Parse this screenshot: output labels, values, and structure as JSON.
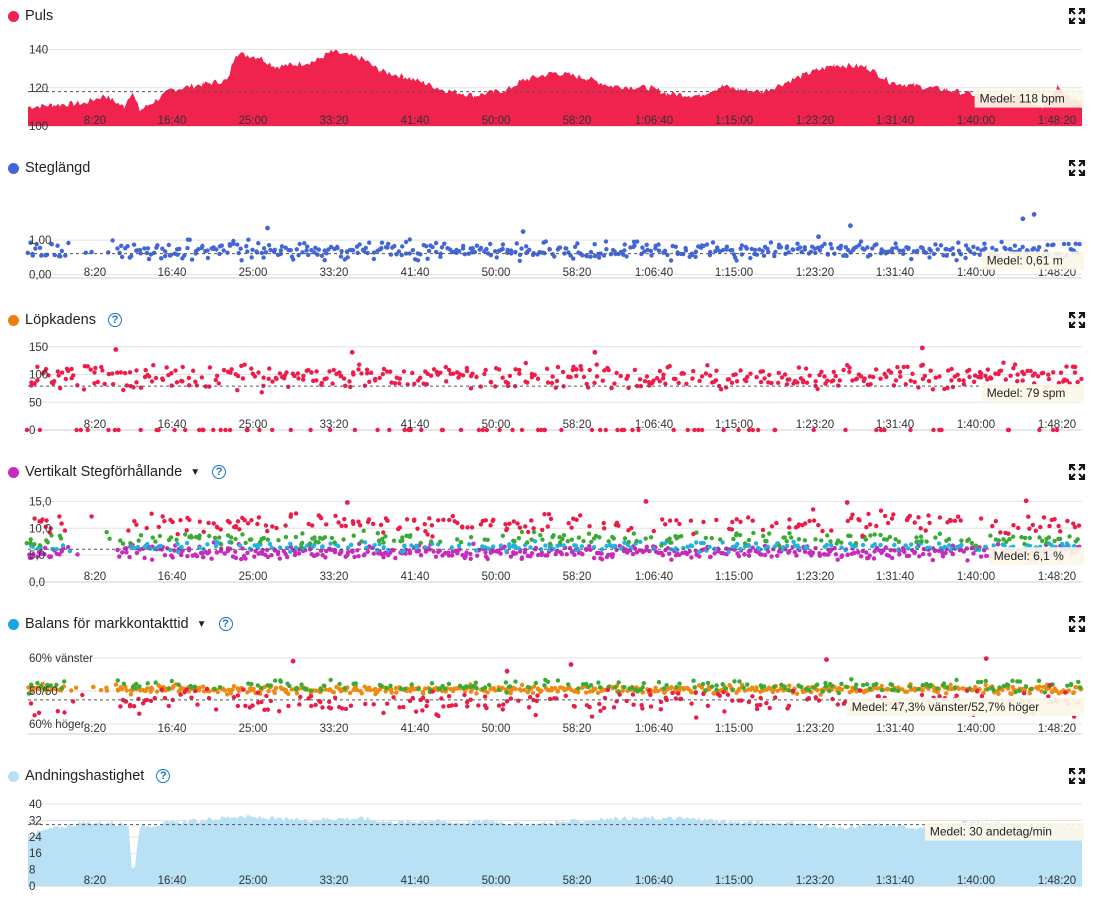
{
  "x_tick_labels": [
    "8:20",
    "16:40",
    "25:00",
    "33:20",
    "41:40",
    "50:00",
    "58:20",
    "1:06:40",
    "1:15:00",
    "1:23:20",
    "1:31:40",
    "1:40:00",
    "1:48:20"
  ],
  "colors": {
    "heart": "#f0224e",
    "stride": "#4266d8",
    "cadence_dot": "#ee7d0e",
    "cadence": "#ef1c4a",
    "vertical": "#c42bbf",
    "balance_dot": "#1aa6e6",
    "breathing": "#b9e1f6",
    "green": "#3aaa35",
    "orange": "#ee8a10",
    "cyan": "#20b2e0",
    "red": "#ea1c48"
  },
  "panels": [
    {
      "id": "heart",
      "title": "Puls",
      "has_help": false,
      "has_caret": false,
      "avg": "Medel: 118 bpm",
      "chart_data": {
        "type": "area",
        "y_tick_labels": [
          "140",
          "120",
          "100"
        ],
        "ylim": [
          100,
          145
        ],
        "avg_value": 118,
        "x_unit": "seconds",
        "xlim": [
          0,
          6600
        ],
        "points": [
          [
            0,
            110
          ],
          [
            150,
            111
          ],
          [
            350,
            112
          ],
          [
            480,
            116
          ],
          [
            600,
            110
          ],
          [
            650,
            118
          ],
          [
            700,
            108
          ],
          [
            900,
            119
          ],
          [
            1100,
            122
          ],
          [
            1250,
            124
          ],
          [
            1300,
            138
          ],
          [
            1450,
            136
          ],
          [
            1550,
            131
          ],
          [
            1650,
            132
          ],
          [
            1800,
            134
          ],
          [
            1900,
            139
          ],
          [
            2100,
            135
          ],
          [
            2200,
            129
          ],
          [
            2350,
            126
          ],
          [
            2500,
            122
          ],
          [
            2600,
            119
          ],
          [
            2800,
            116
          ],
          [
            3000,
            119
          ],
          [
            3100,
            124
          ],
          [
            3300,
            128
          ],
          [
            3500,
            125
          ],
          [
            3650,
            121
          ],
          [
            3900,
            120
          ],
          [
            4000,
            117
          ],
          [
            4200,
            116
          ],
          [
            4350,
            121
          ],
          [
            4450,
            119
          ],
          [
            4600,
            118
          ],
          [
            4900,
            128
          ],
          [
            5050,
            132
          ],
          [
            5250,
            131
          ],
          [
            5400,
            123
          ],
          [
            5550,
            121
          ],
          [
            5750,
            119
          ],
          [
            5950,
            116
          ],
          [
            6050,
            114
          ],
          [
            6200,
            117
          ],
          [
            6350,
            110
          ],
          [
            6450,
            121
          ],
          [
            6550,
            113
          ],
          [
            6600,
            113
          ]
        ]
      }
    },
    {
      "id": "stride",
      "title": "Steglängd",
      "has_help": false,
      "has_caret": false,
      "avg": "Medel: 0,61 m",
      "chart_data": {
        "type": "scatter",
        "y_tick_labels": [
          "1,00",
          "0,00"
        ],
        "ylim": [
          -0.1,
          2.4
        ],
        "avg_value": 0.61,
        "x_unit": "seconds",
        "xlim": [
          0,
          6600
        ],
        "series": [
          {
            "name": "Steglängd",
            "color": "#4266d8",
            "mean": 0.7,
            "spread": 0.25,
            "extremes": [
              [
                1500,
                1.35
              ],
              [
                3100,
                1.25
              ],
              [
                5150,
                1.42
              ],
              [
                6300,
                1.75
              ],
              [
                6230,
                1.62
              ],
              [
                4950,
                1.1
              ]
            ]
          }
        ]
      }
    },
    {
      "id": "cadence",
      "title": "Löpkadens",
      "has_help": true,
      "has_caret": false,
      "avg": "Medel: 79 spm",
      "chart_data": {
        "type": "scatter",
        "y_tick_labels": [
          "150",
          "100",
          "50",
          "0"
        ],
        "ylim": [
          0,
          155
        ],
        "avg_value": 79,
        "x_unit": "seconds",
        "xlim": [
          0,
          6600
        ],
        "series": [
          {
            "name": "Löpkadens",
            "color": "#ef1c4a",
            "mean": 95,
            "spread": 22,
            "extremes": [
              [
                550,
                145
              ],
              [
                5600,
                148
              ],
              [
                2030,
                140
              ],
              [
                3550,
                140
              ]
            ]
          }
        ]
      }
    },
    {
      "id": "vertical",
      "title": "Vertikalt Stegförhållande",
      "has_help": true,
      "has_caret": true,
      "avg": "Medel: 6,1 %",
      "chart_data": {
        "type": "scatter",
        "y_tick_labels": [
          "15,0",
          "10,0",
          "5,0",
          "0,0"
        ],
        "ylim": [
          0,
          16
        ],
        "avg_value": 6.1,
        "x_unit": "seconds",
        "xlim": [
          0,
          6600
        ],
        "series": [
          {
            "name": "magenta",
            "color": "#c42bbf",
            "mean": 5.6,
            "spread": 1.3,
            "extremes": []
          },
          {
            "name": "cyan",
            "color": "#20b2e0",
            "mean": 6.6,
            "spread": 0.8,
            "extremes": []
          },
          {
            "name": "green",
            "color": "#3aaa35",
            "mean": 8.0,
            "spread": 1.2,
            "extremes": []
          },
          {
            "name": "red",
            "color": "#ea1c48",
            "mean": 11.0,
            "spread": 2.0,
            "extremes": [
              [
                2000,
                14.8
              ],
              [
                3870,
                15.0
              ],
              [
                6250,
                15.1
              ],
              [
                5130,
                14.8
              ]
            ]
          }
        ]
      }
    },
    {
      "id": "balance",
      "title": "Balans för markkontakttid",
      "has_help": true,
      "has_caret": true,
      "avg": "Medel: 47,3% vänster/52,7% höger",
      "chart_data": {
        "type": "scatter",
        "y_tick_labels": [
          "60% vänster",
          "50/50",
          "60% höger"
        ],
        "ylim": [
          -13,
          13
        ],
        "avg_value": -2.7,
        "x_unit": "seconds",
        "xlim": [
          0,
          6600
        ],
        "series": [
          {
            "name": "orange",
            "color": "#ee8a10",
            "mean": 0.5,
            "spread": 1.2,
            "extremes": []
          },
          {
            "name": "green",
            "color": "#3aaa35",
            "mean": 1.5,
            "spread": 1.6,
            "extremes": []
          },
          {
            "name": "red",
            "color": "#ea1c48",
            "mean": -3.5,
            "spread": 4.0,
            "extremes": [
              [
                1660,
                9.0
              ],
              [
                5000,
                9.5
              ],
              [
                6000,
                9.8
              ],
              [
                3000,
                6.0
              ],
              [
                3400,
                8.0
              ]
            ]
          }
        ]
      }
    },
    {
      "id": "breathing",
      "title": "Andningshastighet",
      "has_help": true,
      "has_caret": false,
      "avg": "Medel: 30 andetag/min",
      "chart_data": {
        "type": "area",
        "y_tick_labels": [
          "40",
          "32",
          "24",
          "16",
          "8",
          "0"
        ],
        "ylim": [
          0,
          42
        ],
        "avg_value": 30,
        "x_unit": "seconds",
        "xlim": [
          0,
          6600
        ],
        "points": [
          [
            0,
            25
          ],
          [
            150,
            28
          ],
          [
            350,
            31
          ],
          [
            500,
            31
          ],
          [
            630,
            30
          ],
          [
            650,
            8
          ],
          [
            670,
            10
          ],
          [
            700,
            29
          ],
          [
            900,
            31
          ],
          [
            1100,
            32
          ],
          [
            1300,
            34
          ],
          [
            1500,
            33
          ],
          [
            1700,
            32
          ],
          [
            1900,
            33
          ],
          [
            2100,
            33
          ],
          [
            2300,
            31
          ],
          [
            2500,
            32
          ],
          [
            2700,
            31
          ],
          [
            2900,
            32
          ],
          [
            3100,
            30
          ],
          [
            3300,
            31
          ],
          [
            3500,
            32
          ],
          [
            3700,
            33
          ],
          [
            3900,
            33
          ],
          [
            4100,
            33
          ],
          [
            4300,
            32
          ],
          [
            4500,
            31
          ],
          [
            4700,
            31
          ],
          [
            4900,
            30
          ],
          [
            5100,
            28
          ],
          [
            5300,
            30
          ],
          [
            5500,
            29
          ],
          [
            5700,
            28
          ],
          [
            5800,
            31
          ],
          [
            6000,
            31
          ],
          [
            6200,
            30
          ],
          [
            6400,
            29
          ],
          [
            6600,
            29
          ]
        ]
      }
    }
  ]
}
